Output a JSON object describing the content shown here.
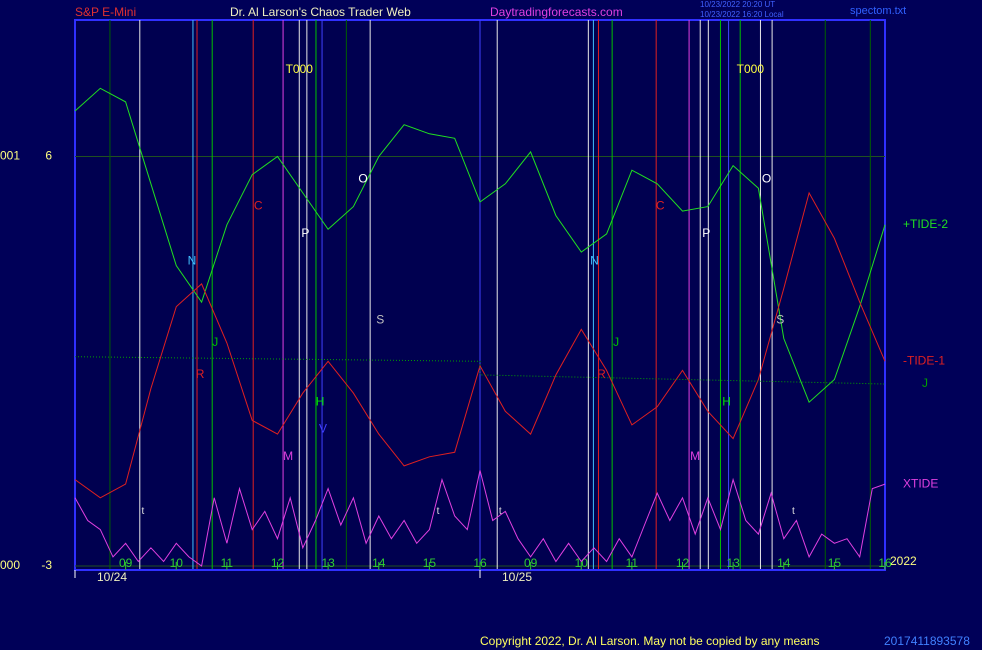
{
  "chart_data": {
    "type": "line",
    "instrument": "S&P E-Mini",
    "title": "Dr. Al Larson's Chaos Trader Web",
    "website": "Daytradingforecasts.com",
    "timestamp_lines": [
      "10/23/2022 20:20 UT",
      "10/23/2022 16:20 Local"
    ],
    "file": "spectom.txt",
    "copyright": "Copyright 2022, Dr. Al Larson. May not be copied by any means",
    "footer_code": "2017411893578",
    "year": "2022",
    "xlim": [
      0,
      16
    ],
    "xticks": [
      {
        "value": 1,
        "label": "09"
      },
      {
        "value": 2,
        "label": "10"
      },
      {
        "value": 3,
        "label": "11"
      },
      {
        "value": 4,
        "label": "12"
      },
      {
        "value": 5,
        "label": "13"
      },
      {
        "value": 6,
        "label": "14"
      },
      {
        "value": 7,
        "label": "15"
      },
      {
        "value": 8,
        "label": "16"
      },
      {
        "value": 9,
        "label": "09"
      },
      {
        "value": 10,
        "label": "10"
      },
      {
        "value": 11,
        "label": "11"
      },
      {
        "value": 12,
        "label": "12"
      },
      {
        "value": 13,
        "label": "13"
      },
      {
        "value": 14,
        "label": "14"
      },
      {
        "value": 15,
        "label": "15"
      },
      {
        "value": 16,
        "label": "16"
      }
    ],
    "dates": [
      {
        "label": "10/24",
        "x": 0
      },
      {
        "label": "10/25",
        "x": 8
      }
    ],
    "ylim": [
      -3,
      9
    ],
    "yticks": [
      6,
      -3
    ],
    "y_side_labels": [
      "001",
      "000"
    ],
    "grid": true,
    "series": [
      {
        "name": "+TIDE-2",
        "color": "#20e020",
        "x": [
          0,
          0.5,
          1,
          1.5,
          2,
          2.5,
          3,
          3.5,
          4,
          4.5,
          5,
          5.5,
          6,
          6.5,
          7,
          7.5,
          8,
          8.5,
          9,
          9.5,
          10,
          10.5,
          11,
          11.5,
          12,
          12.5,
          13,
          13.5,
          14,
          14.5,
          15,
          15.5,
          16
        ],
        "values": [
          7.0,
          7.5,
          7.2,
          5.4,
          3.6,
          2.8,
          4.5,
          5.6,
          6.0,
          5.2,
          4.4,
          4.9,
          6.0,
          6.7,
          6.5,
          6.4,
          5.0,
          5.4,
          6.1,
          4.7,
          3.9,
          4.3,
          5.7,
          5.4,
          4.8,
          4.9,
          5.8,
          5.3,
          2.0,
          0.6,
          1.1,
          2.7,
          4.5
        ]
      },
      {
        "name": "-TIDE-1",
        "color": "#e02020",
        "x": [
          0,
          0.5,
          1,
          1.5,
          2,
          2.5,
          3,
          3.5,
          4,
          4.5,
          5,
          5.5,
          6,
          6.5,
          7,
          7.5,
          8,
          8.5,
          9,
          9.5,
          10,
          10.5,
          11,
          11.5,
          12,
          12.5,
          13,
          13.5,
          14,
          14.5,
          15,
          15.5,
          16
        ],
        "values": [
          -1.1,
          -1.5,
          -1.2,
          0.9,
          2.7,
          3.2,
          1.9,
          0.2,
          -0.1,
          0.8,
          1.5,
          0.8,
          -0.1,
          -0.8,
          -0.6,
          -0.5,
          1.4,
          0.4,
          -0.1,
          1.2,
          2.2,
          1.3,
          0.1,
          0.5,
          1.3,
          0.4,
          -0.2,
          1.1,
          3.1,
          5.2,
          4.2,
          2.8,
          1.5
        ]
      },
      {
        "name": "XTIDE",
        "color": "#e040e0",
        "x": [
          0,
          0.25,
          0.5,
          0.75,
          1,
          1.25,
          1.5,
          1.75,
          2,
          2.25,
          2.5,
          2.75,
          3,
          3.25,
          3.5,
          3.75,
          4,
          4.25,
          4.5,
          4.75,
          5,
          5.25,
          5.5,
          5.75,
          6,
          6.25,
          6.5,
          6.75,
          7,
          7.25,
          7.5,
          7.75,
          8,
          8.25,
          8.5,
          8.75,
          9,
          9.25,
          9.5,
          9.75,
          10,
          10.25,
          10.5,
          10.75,
          11,
          11.25,
          11.5,
          11.75,
          12,
          12.25,
          12.5,
          12.75,
          13,
          13.25,
          13.5,
          13.75,
          14,
          14.25,
          14.5,
          14.75,
          15,
          15.25,
          15.5,
          15.75,
          16
        ],
        "values": [
          -1.5,
          -2.0,
          -2.2,
          -2.8,
          -2.5,
          -2.9,
          -2.6,
          -2.9,
          -2.5,
          -2.8,
          -3.0,
          -1.5,
          -2.5,
          -1.3,
          -2.2,
          -1.8,
          -2.4,
          -1.5,
          -2.6,
          -2.0,
          -1.3,
          -2.1,
          -1.5,
          -2.5,
          -1.9,
          -2.4,
          -2.0,
          -2.5,
          -2.2,
          -1.1,
          -1.9,
          -2.2,
          -0.9,
          -2.0,
          -1.8,
          -2.4,
          -2.8,
          -2.4,
          -2.9,
          -2.5,
          -2.9,
          -2.6,
          -2.9,
          -2.4,
          -2.8,
          -2.1,
          -1.4,
          -2.0,
          -1.5,
          -2.3,
          -1.5,
          -2.2,
          -1.1,
          -2.0,
          -2.3,
          -1.4,
          -2.4,
          -2.0,
          -2.8,
          -2.3,
          -2.5,
          -2.4,
          -2.8,
          -1.3,
          -1.2
        ]
      },
      {
        "name": "J",
        "color": "#00a000",
        "dotted": true,
        "x": [
          0,
          8,
          8,
          16
        ],
        "values": [
          1.6,
          1.5,
          1.2,
          1.0
        ]
      }
    ],
    "event_lines": [
      {
        "x": 0.69,
        "color": "#006000"
      },
      {
        "x": 1.28,
        "color": "#e8e8e8"
      },
      {
        "x": 2.33,
        "color": "#40c0ff"
      },
      {
        "x": 2.41,
        "color": "#e02020"
      },
      {
        "x": 2.71,
        "color": "#00c000"
      },
      {
        "x": 3.52,
        "color": "#e02020"
      },
      {
        "x": 4.11,
        "color": "#e040e0"
      },
      {
        "x": 4.43,
        "color": "#e8e8e8"
      },
      {
        "x": 4.58,
        "color": "#e8e8e8"
      },
      {
        "x": 4.76,
        "color": "#00c000"
      },
      {
        "x": 4.88,
        "color": "#4040ff"
      },
      {
        "x": 5.36,
        "color": "#006000"
      },
      {
        "x": 5.83,
        "color": "#e8e8e8"
      },
      {
        "x": 8.0,
        "color": "#4040ff"
      },
      {
        "x": 8.34,
        "color": "#e8e8e8"
      },
      {
        "x": 10.14,
        "color": "#e8e8e8"
      },
      {
        "x": 10.24,
        "color": "#40c0ff"
      },
      {
        "x": 10.34,
        "color": "#e02020"
      },
      {
        "x": 10.61,
        "color": "#00c000"
      },
      {
        "x": 11.48,
        "color": "#e02020"
      },
      {
        "x": 12.13,
        "color": "#e040e0"
      },
      {
        "x": 12.35,
        "color": "#e8e8e8"
      },
      {
        "x": 12.51,
        "color": "#e8e8e8"
      },
      {
        "x": 12.75,
        "color": "#00c000"
      },
      {
        "x": 12.91,
        "color": "#4040ff"
      },
      {
        "x": 13.14,
        "color": "#00c000"
      },
      {
        "x": 13.54,
        "color": "#e8e8e8"
      },
      {
        "x": 13.77,
        "color": "#e8e8e8"
      },
      {
        "x": 14.82,
        "color": "#006000"
      },
      {
        "x": 15.71,
        "color": "#006000"
      }
    ],
    "annotations": [
      {
        "text": "T000",
        "x": 4.43,
        "y": 7.9,
        "color": "#ffff40"
      },
      {
        "text": "T000",
        "x": 13.34,
        "y": 7.9,
        "color": "#ffff40"
      },
      {
        "text": "N",
        "x": 2.31,
        "y": 3.7,
        "color": "#40c0ff"
      },
      {
        "text": "N",
        "x": 10.26,
        "y": 3.7,
        "color": "#40c0ff"
      },
      {
        "text": "R",
        "x": 2.47,
        "y": 1.2,
        "color": "#e02020"
      },
      {
        "text": "R",
        "x": 10.4,
        "y": 1.2,
        "color": "#e02020"
      },
      {
        "text": "J",
        "x": 2.77,
        "y": 1.9,
        "color": "#00c000"
      },
      {
        "text": "J",
        "x": 10.69,
        "y": 1.9,
        "color": "#00c000"
      },
      {
        "text": "C",
        "x": 3.62,
        "y": 4.9,
        "color": "#e02020"
      },
      {
        "text": "C",
        "x": 11.56,
        "y": 4.9,
        "color": "#e02020"
      },
      {
        "text": "M",
        "x": 4.21,
        "y": -0.6,
        "color": "#e040e0"
      },
      {
        "text": "M",
        "x": 12.25,
        "y": -0.6,
        "color": "#e040e0"
      },
      {
        "text": "P",
        "x": 4.55,
        "y": 4.3,
        "color": "#ffffff"
      },
      {
        "text": "P",
        "x": 12.47,
        "y": 4.3,
        "color": "#ffffff"
      },
      {
        "text": "H",
        "x": 4.84,
        "y": 0.6,
        "color": "#00e000"
      },
      {
        "text": "H",
        "x": 12.87,
        "y": 0.6,
        "color": "#00e000"
      },
      {
        "text": "V",
        "x": 4.9,
        "y": 0.0,
        "color": "#4040ff"
      },
      {
        "text": "O",
        "x": 5.69,
        "y": 5.5,
        "color": "#ffffff"
      },
      {
        "text": "O",
        "x": 13.66,
        "y": 5.5,
        "color": "#ffffff"
      },
      {
        "text": "S",
        "x": 6.03,
        "y": 2.4,
        "color": "#c0c0c0"
      },
      {
        "text": "S",
        "x": 13.93,
        "y": 2.4,
        "color": "#c0c0c0"
      },
      {
        "text": "t",
        "x": 1.34,
        "y": -1.8,
        "color": "#e0e0e0"
      },
      {
        "text": "t",
        "x": 7.17,
        "y": -1.8,
        "color": "#e0e0e0"
      },
      {
        "text": "t",
        "x": 8.4,
        "y": -1.8,
        "color": "#e0e0e0"
      },
      {
        "text": "t",
        "x": 14.19,
        "y": -1.8,
        "color": "#e0e0e0"
      }
    ]
  }
}
